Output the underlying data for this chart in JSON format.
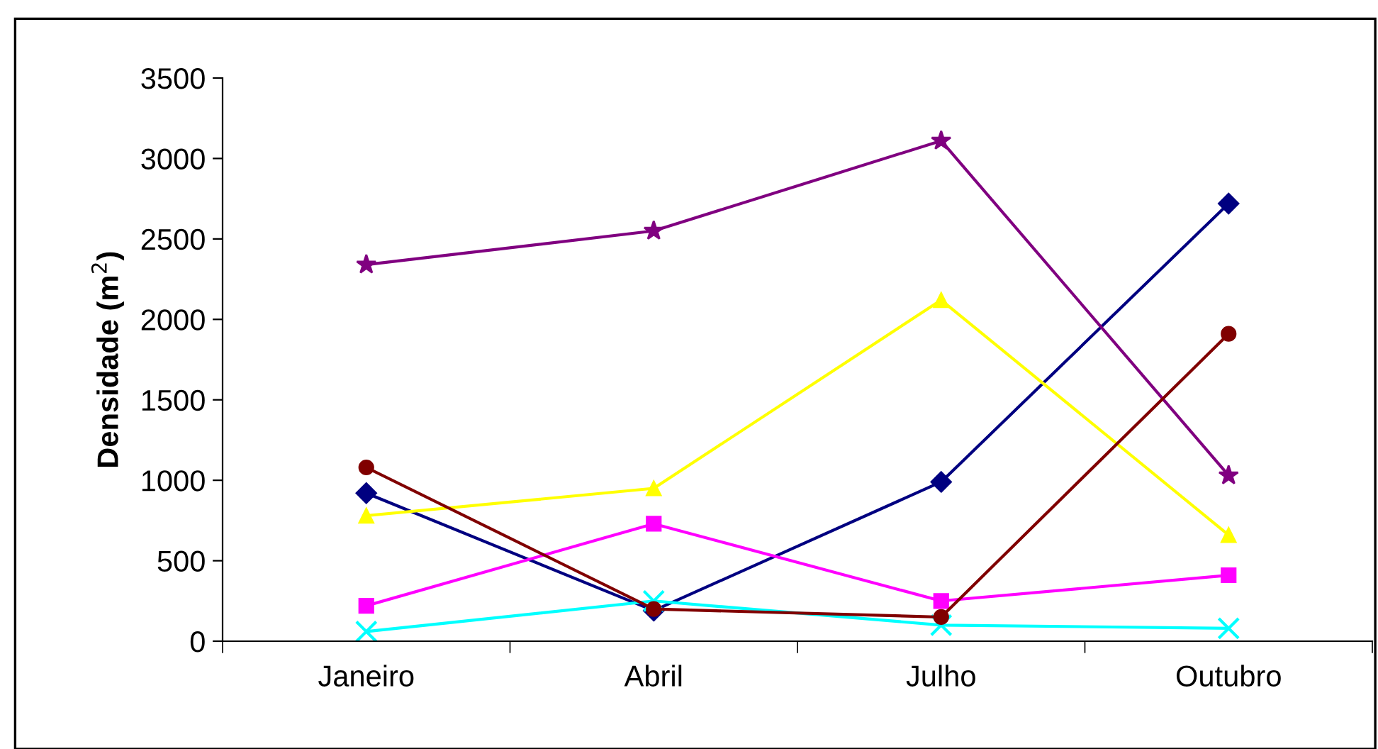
{
  "chart_data": {
    "type": "line",
    "ylabel": "Densidade (m$^{2}$)",
    "categories": [
      "Janeiro",
      "Abril",
      "Julho",
      "Outubro"
    ],
    "ylim": [
      0,
      3500
    ],
    "yticks": [
      0,
      500,
      1000,
      1500,
      2000,
      2500,
      3000,
      3500
    ],
    "grid": false,
    "legend": false,
    "series": [
      {
        "color": "#000080",
        "marker": "diamond",
        "values": [
          920,
          190,
          990,
          2720
        ]
      },
      {
        "color": "#ff00ff",
        "marker": "square",
        "values": [
          220,
          730,
          250,
          410
        ]
      },
      {
        "color": "#ffff00",
        "marker": "triangle",
        "values": [
          780,
          950,
          2120,
          660
        ]
      },
      {
        "color": "#00ffff",
        "marker": "cross",
        "values": [
          60,
          250,
          100,
          80
        ]
      },
      {
        "color": "#800080",
        "marker": "star",
        "values": [
          2340,
          2550,
          3110,
          1030
        ]
      },
      {
        "color": "#800000",
        "marker": "circle",
        "values": [
          1080,
          200,
          150,
          1910
        ]
      }
    ]
  }
}
